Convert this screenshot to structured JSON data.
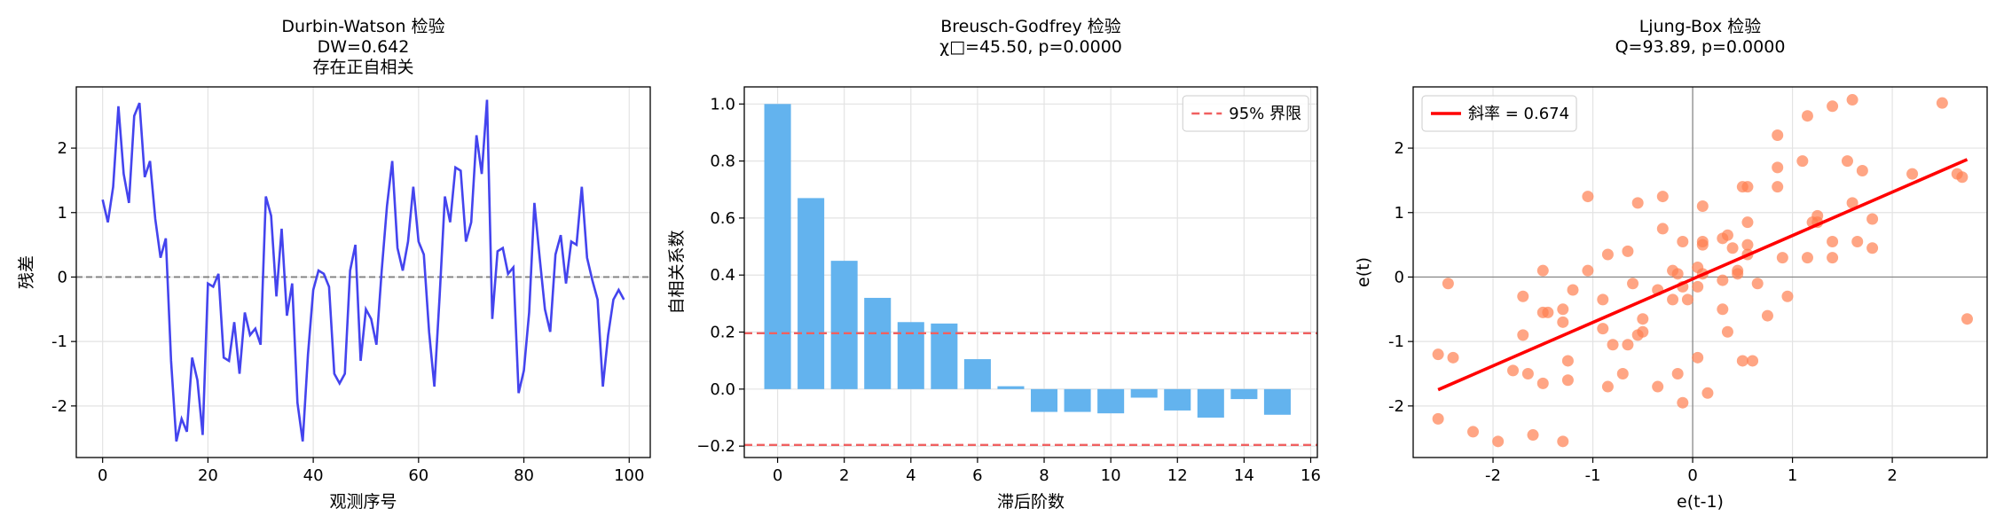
{
  "chart_data": [
    {
      "type": "line",
      "title": [
        "Durbin-Watson 检验",
        "DW=0.642",
        "存在正自相关"
      ],
      "xlabel": "观测序号",
      "ylabel": "残差",
      "color": "#4444ee",
      "x": [
        0,
        1,
        2,
        3,
        4,
        5,
        6,
        7,
        8,
        9,
        10,
        11,
        12,
        13,
        14,
        15,
        16,
        17,
        18,
        19,
        20,
        21,
        22,
        23,
        24,
        25,
        26,
        27,
        28,
        29,
        30,
        31,
        32,
        33,
        34,
        35,
        36,
        37,
        38,
        39,
        40,
        41,
        42,
        43,
        44,
        45,
        46,
        47,
        48,
        49,
        50,
        51,
        52,
        53,
        54,
        55,
        56,
        57,
        58,
        59,
        60,
        61,
        62,
        63,
        64,
        65,
        66,
        67,
        68,
        69,
        70,
        71,
        72,
        73,
        74,
        75,
        76,
        77,
        78,
        79,
        80,
        81,
        82,
        83,
        84,
        85,
        86,
        87,
        88,
        89,
        90,
        91,
        92,
        93,
        94,
        95,
        96,
        97,
        98,
        99
      ],
      "values": [
        1.2,
        0.85,
        1.4,
        2.65,
        1.6,
        1.15,
        2.5,
        2.7,
        1.55,
        1.8,
        0.9,
        0.3,
        0.6,
        -1.3,
        -2.55,
        -2.2,
        -2.4,
        -1.25,
        -1.6,
        -2.45,
        -0.1,
        -0.15,
        0.05,
        -1.25,
        -1.3,
        -0.7,
        -1.5,
        -0.55,
        -0.9,
        -0.8,
        -1.05,
        1.25,
        0.95,
        -0.3,
        0.75,
        -0.6,
        -0.1,
        -1.95,
        -2.55,
        -1.2,
        -0.2,
        0.1,
        0.05,
        -0.15,
        -1.5,
        -1.65,
        -1.5,
        0.1,
        0.5,
        -1.3,
        -0.5,
        -0.65,
        -1.05,
        0.1,
        1.1,
        1.8,
        0.45,
        0.1,
        0.55,
        1.4,
        0.55,
        0.35,
        -0.85,
        -1.7,
        -0.3,
        1.25,
        0.85,
        1.7,
        1.65,
        0.55,
        0.85,
        2.2,
        1.6,
        2.75,
        -0.65,
        0.4,
        0.45,
        0.05,
        0.15,
        -1.8,
        -1.45,
        -0.55,
        1.15,
        0.3,
        -0.5,
        -0.85,
        0.35,
        0.65,
        -0.1,
        0.55,
        0.5,
        1.4,
        0.3,
        -0.05,
        -0.35,
        -1.7,
        -0.9,
        -0.35,
        -0.2,
        -0.35
      ],
      "hline": {
        "value": 0,
        "color": "#808080"
      },
      "xlim": [
        -5,
        104
      ],
      "xticks": [
        0,
        20,
        40,
        60,
        80,
        100
      ],
      "ylim": [
        -2.8,
        2.95
      ],
      "yticks": [
        -2,
        -1,
        0,
        1,
        2
      ],
      "grid": true
    },
    {
      "type": "bar",
      "title": [
        "Breusch-Godfrey 检验",
        "χ□=45.50, p=0.0000"
      ],
      "xlabel": "滞后阶数",
      "ylabel": "自相关系数",
      "color": "#63b3ee",
      "categories": [
        0,
        1,
        2,
        3,
        4,
        5,
        6,
        7,
        8,
        9,
        10,
        11,
        12,
        13,
        14,
        15
      ],
      "values": [
        1.0,
        0.67,
        0.45,
        0.32,
        0.235,
        0.23,
        0.105,
        0.01,
        -0.08,
        -0.08,
        -0.085,
        -0.03,
        -0.075,
        -0.1,
        -0.035,
        -0.09
      ],
      "bounds": {
        "name": "95% 界限",
        "values": [
          0.196,
          -0.196
        ],
        "color": "#f06060"
      },
      "legend": "upper right",
      "xlim": [
        -1.0,
        16.2
      ],
      "xticks": [
        0,
        2,
        4,
        6,
        8,
        10,
        12,
        14,
        16
      ],
      "ylim": [
        -0.24,
        1.06
      ],
      "yticks": [
        {
          "value": -0.2,
          "label": "−0.2"
        },
        {
          "value": 0,
          "label": "0.0"
        },
        0.2,
        0.4,
        0.6,
        0.8,
        {
          "value": 1,
          "label": "1.0"
        }
      ],
      "grid": true
    },
    {
      "type": "scatter",
      "title": [
        "Ljung-Box 检验",
        "Q=93.89, p=0.0000"
      ],
      "xlabel": "e(t-1)",
      "ylabel": "e(t)",
      "color": "#ff7f50",
      "x": [
        1.2,
        0.85,
        1.4,
        2.65,
        1.6,
        1.15,
        2.5,
        2.7,
        1.55,
        1.8,
        0.9,
        0.3,
        0.6,
        -1.3,
        -2.55,
        -2.2,
        -2.4,
        -1.25,
        -1.6,
        -2.45,
        -0.1,
        -0.15,
        0.05,
        -1.25,
        -1.3,
        -0.7,
        -1.5,
        -0.55,
        -0.9,
        -0.8,
        -1.05,
        1.25,
        0.95,
        -0.3,
        0.75,
        -0.6,
        -0.1,
        -1.95,
        -2.55,
        -1.2,
        -0.2,
        0.1,
        0.05,
        -0.15,
        -1.5,
        -1.65,
        -1.5,
        0.1,
        0.5,
        -1.3,
        -0.5,
        -0.65,
        -1.05,
        0.1,
        1.1,
        1.8,
        0.45,
        0.1,
        0.55,
        1.4,
        0.55,
        0.35,
        -0.85,
        -1.7,
        -0.3,
        1.25,
        0.85,
        1.7,
        1.65,
        0.55,
        0.85,
        2.2,
        1.6,
        2.75,
        -0.65,
        0.4,
        0.45,
        0.05,
        0.15,
        -1.8,
        -1.45,
        -0.55,
        1.15,
        0.3,
        -0.5,
        -0.85,
        0.35,
        0.65,
        -0.1,
        0.55,
        0.5,
        1.4,
        0.3,
        -0.05,
        -0.35,
        -1.7,
        -0.9,
        -0.35,
        -0.2
      ],
      "values": [
        0.85,
        1.4,
        2.65,
        1.6,
        1.15,
        2.5,
        2.7,
        1.55,
        1.8,
        0.9,
        0.3,
        0.6,
        -1.3,
        -2.55,
        -2.2,
        -2.4,
        -1.25,
        -1.6,
        -2.45,
        -0.1,
        -0.15,
        0.05,
        -1.25,
        -1.3,
        -0.7,
        -1.5,
        -0.55,
        -0.9,
        -0.8,
        -1.05,
        1.25,
        0.95,
        -0.3,
        0.75,
        -0.6,
        -0.1,
        -1.95,
        -2.55,
        -1.2,
        -0.2,
        0.1,
        0.05,
        -0.15,
        -1.5,
        -1.65,
        -1.5,
        0.1,
        0.5,
        -1.3,
        -0.5,
        -0.65,
        -1.05,
        0.1,
        1.1,
        1.8,
        0.45,
        0.1,
        0.55,
        1.4,
        0.55,
        0.35,
        -0.85,
        -1.7,
        -0.3,
        1.25,
        0.85,
        1.7,
        1.65,
        0.55,
        0.85,
        2.2,
        1.6,
        2.75,
        -0.65,
        0.4,
        0.45,
        0.05,
        0.15,
        -1.8,
        -1.45,
        -0.55,
        1.15,
        0.3,
        -0.5,
        -0.85,
        0.35,
        0.65,
        -0.1,
        0.55,
        0.5,
        1.4,
        0.3,
        -0.05,
        -0.35,
        -1.7,
        -0.9,
        -0.35,
        -0.2,
        -0.35
      ],
      "fit": {
        "name": "斜率 = 0.674",
        "slope": 0.674,
        "intercept": -0.03,
        "color": "#ff0000"
      },
      "axes_lines": {
        "value": 0,
        "color": "#808080"
      },
      "legend": "upper left",
      "xlim": [
        -2.8,
        2.95
      ],
      "xticks": [
        -2,
        -1,
        0,
        1,
        2
      ],
      "ylim": [
        -2.8,
        2.95
      ],
      "yticks": [
        -2,
        -1,
        0,
        1,
        2
      ],
      "grid": true
    }
  ]
}
